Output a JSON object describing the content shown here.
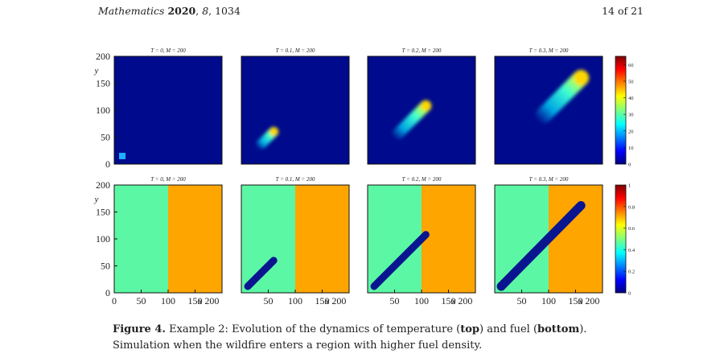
{
  "header": {
    "journal": "Mathematics",
    "year": "2020",
    "volume": "8",
    "article": "1034",
    "page": "14 of 21"
  },
  "figure": {
    "panels": [
      {
        "row": "temperature",
        "col": 0,
        "title": "T = 0, M = 200"
      },
      {
        "row": "temperature",
        "col": 1,
        "title": "T = 0.1, M = 200"
      },
      {
        "row": "temperature",
        "col": 2,
        "title": "T = 0.2, M = 200"
      },
      {
        "row": "temperature",
        "col": 3,
        "title": "T = 0.3, M = 200"
      },
      {
        "row": "fuel",
        "col": 0,
        "title": "T = 0, M = 200"
      },
      {
        "row": "fuel",
        "col": 1,
        "title": "T = 0.1, M = 200"
      },
      {
        "row": "fuel",
        "col": 2,
        "title": "T = 0.2, M = 200"
      },
      {
        "row": "fuel",
        "col": 3,
        "title": "T = 0.3, M = 200"
      }
    ],
    "y_ticks": [
      "0",
      "50",
      "100",
      "150",
      "200"
    ],
    "x_ticks": [
      "0",
      "50",
      "100",
      "150",
      "200"
    ],
    "y_label": "y",
    "x_label": "x",
    "temperature_colorbar_ticks": [
      "0",
      "10",
      "20",
      "30",
      "40",
      "50",
      "60"
    ],
    "fuel_colorbar_ticks": [
      "0",
      "0.2",
      "0.4",
      "0.6",
      "0.8",
      "1"
    ],
    "colors": {
      "background_low": "#000a8c",
      "fuel_low": "#5cf7a4",
      "fuel_high": "#ffa500",
      "burnt": "#0a1690"
    }
  },
  "chart_data": [
    {
      "type": "heatmap",
      "quantity": "temperature",
      "x_range": [
        0,
        200
      ],
      "y_range": [
        0,
        200
      ],
      "color_range": [
        0,
        65
      ],
      "panels": [
        {
          "title": "T = 0, M = 200",
          "hot_spot": {
            "x": 15,
            "y": 15
          }
        },
        {
          "title": "T = 0.1, M = 200",
          "front": {
            "x": 60,
            "y": 60
          }
        },
        {
          "title": "T = 0.2, M = 200",
          "front": {
            "x": 108,
            "y": 108
          }
        },
        {
          "title": "T = 0.3, M = 200",
          "front": {
            "x": 160,
            "y": 160
          }
        }
      ]
    },
    {
      "type": "heatmap",
      "quantity": "fuel",
      "x_range": [
        0,
        200
      ],
      "y_range": [
        0,
        200
      ],
      "color_range": [
        0,
        1
      ],
      "regions": [
        {
          "x_from": 0,
          "x_to": 100,
          "value": 0.4
        },
        {
          "x_from": 100,
          "x_to": 200,
          "value": 0.63
        }
      ],
      "panels": [
        {
          "title": "T = 0, M = 200",
          "burnt_to": null
        },
        {
          "title": "T = 0.1, M = 200",
          "burnt_to": {
            "x": 60,
            "y": 60
          }
        },
        {
          "title": "T = 0.2, M = 200",
          "burnt_to": {
            "x": 108,
            "y": 108
          }
        },
        {
          "title": "T = 0.3, M = 200",
          "burnt_to": {
            "x": 160,
            "y": 162
          }
        }
      ]
    }
  ],
  "caption": {
    "label": "Figure 4.",
    "text_1": "Example 2: Evolution of the dynamics of temperature (",
    "bold_1": "top",
    "text_2": ") and fuel (",
    "bold_2": "bottom",
    "text_3": "). Simulation when the wildfire enters a region with higher fuel density."
  }
}
